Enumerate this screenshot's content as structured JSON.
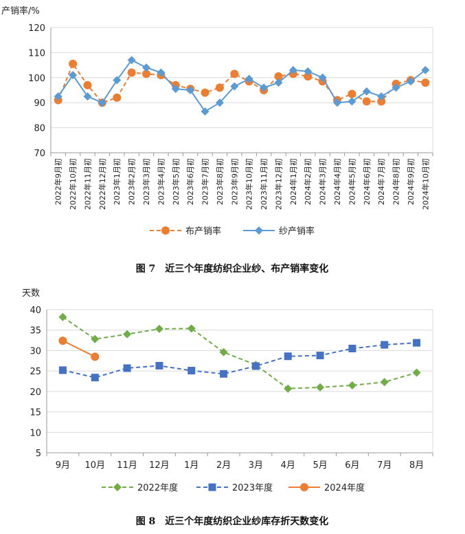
{
  "chart_data": [
    {
      "type": "line",
      "ylabel": "产销率/%",
      "ylim": [
        70,
        120
      ],
      "yticks": [
        70,
        80,
        90,
        100,
        110,
        120
      ],
      "grid": "horizontal",
      "legend_position": "bottom",
      "categories": [
        "2022年9月初",
        "2022年10月初",
        "2022年11月初",
        "2022年12月初",
        "2023年1月初",
        "2023年2月初",
        "2023年3月初",
        "2023年4月初",
        "2023年5月初",
        "2023年6月初",
        "2023年7月初",
        "2023年8月初",
        "2023年9月初",
        "2023年10月初",
        "2023年11月初",
        "2023年12月初",
        "2024年1月初",
        "2024年2月初",
        "2024年3月初",
        "2024年4月初",
        "2024年5月初",
        "2024年6月初",
        "2024年7月初",
        "2024年8月初",
        "2024年9月初",
        "2024年10月初"
      ],
      "series": [
        {
          "name": "布产销率",
          "color": "#ED7D31",
          "style": "dashed",
          "marker": "circle",
          "values": [
            91,
            105.5,
            97,
            90,
            92,
            102,
            101.5,
            101,
            97,
            95.5,
            94,
            96,
            101.5,
            98.5,
            95,
            100.5,
            101.5,
            100.5,
            98.5,
            91,
            93.5,
            90.5,
            90.5,
            97.5,
            99,
            98
          ]
        },
        {
          "name": "纱产销率",
          "color": "#5B9BD5",
          "style": "solid",
          "marker": "diamond",
          "values": [
            92.5,
            101,
            92.5,
            90,
            99,
            107,
            104,
            102,
            95.5,
            95,
            86.5,
            90,
            96.5,
            99.5,
            96,
            98,
            103,
            102.5,
            100,
            90,
            90.5,
            94.5,
            92.5,
            96,
            98.5,
            103
          ]
        }
      ],
      "caption": "图 7　近三个年度纺织企业纱、布产销率变化"
    },
    {
      "type": "line",
      "ylabel": "天数",
      "ylim": [
        5,
        40
      ],
      "yticks": [
        5,
        10,
        15,
        20,
        25,
        30,
        35,
        40
      ],
      "grid": "horizontal",
      "legend_position": "bottom",
      "categories": [
        "9月",
        "10月",
        "11月",
        "12月",
        "1月",
        "2月",
        "3月",
        "4月",
        "5月",
        "6月",
        "7月",
        "8月"
      ],
      "series": [
        {
          "name": "2022年度",
          "color": "#70AD47",
          "style": "dashed",
          "marker": "diamond",
          "values": [
            38.2,
            32.8,
            34,
            35.3,
            35.4,
            29.6,
            26.5,
            20.7,
            21,
            21.5,
            22.3,
            24.6
          ]
        },
        {
          "name": "2023年度",
          "color": "#4472C4",
          "style": "dashed",
          "marker": "square",
          "values": [
            25.2,
            23.4,
            25.7,
            26.3,
            25.1,
            24.3,
            26.2,
            28.6,
            28.8,
            30.5,
            31.4,
            31.9
          ]
        },
        {
          "name": "2024年度",
          "color": "#ED7D31",
          "style": "solid",
          "marker": "circle",
          "values": [
            32.4,
            28.5,
            null,
            null,
            null,
            null,
            null,
            null,
            null,
            null,
            null,
            null
          ]
        }
      ],
      "caption": "图 8　近三个年度纺织企业纱库存折天数变化"
    }
  ]
}
